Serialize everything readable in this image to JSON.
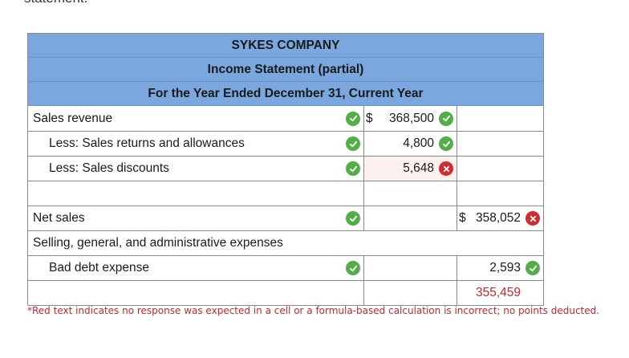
{
  "header": {
    "company": "SYKES COMPANY",
    "statement": "Income Statement (partial)",
    "period": "For the Year Ended December 31, Current Year"
  },
  "rows": [
    {
      "label": "Sales revenue",
      "col1_prefix": "$",
      "col1": "368,500",
      "col1_status": "correct",
      "col2": "",
      "label_status": "correct"
    },
    {
      "label": "Less: Sales returns and allowances",
      "col1": "4,800",
      "col1_status": "correct",
      "col2": "",
      "label_status": "correct"
    },
    {
      "label": "Less: Sales discounts",
      "col1": "5,648",
      "col1_status": "incorrect",
      "col2": "",
      "label_status": "correct"
    },
    {
      "label": "",
      "col1": "",
      "col2": ""
    },
    {
      "label": "Net sales",
      "col1": "",
      "col2_prefix": "$",
      "col2": "358,052",
      "col2_status": "incorrect",
      "label_status": "correct"
    },
    {
      "label": "Selling, general, and administrative expenses",
      "col1": "",
      "col2": ""
    },
    {
      "label": "Bad debt expense",
      "col1": "",
      "col2": "2,593",
      "col2_status": "correct",
      "label_status": "correct"
    },
    {
      "label": "",
      "col1": "",
      "col2": "355,459",
      "col2_color": "red"
    }
  ],
  "footnote": "*Red text indicates no response was expected in a cell or a formula-based calculation is incorrect; no points deducted.",
  "colors": {
    "header_bg": "#7aa7dd",
    "correct": "#52ae47",
    "incorrect": "#d12c2f",
    "red_text": "#c3272b"
  }
}
